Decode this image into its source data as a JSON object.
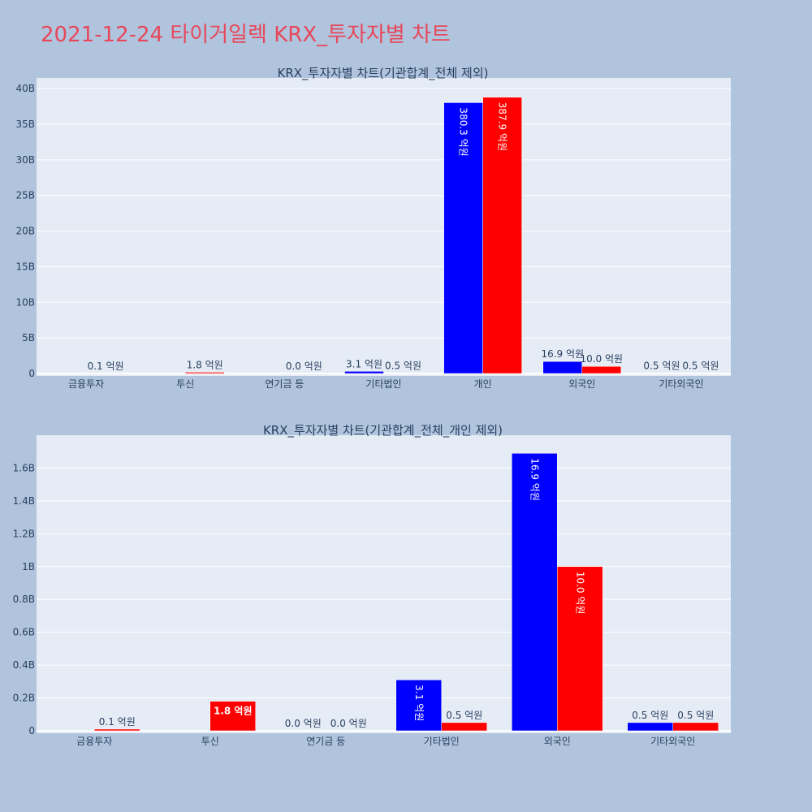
{
  "page_title": "2021-12-24 타이거일렉 KRX_투자자별 차트",
  "colors": {
    "background": "#b0c4de",
    "plot_bg": "#e5ecf6",
    "title": "#e8475a",
    "series_a": "#0000ff",
    "series_b": "#ff0000"
  },
  "chart_data": [
    {
      "type": "bar",
      "title": "KRX_투자자별 차트(기관합계_전체 제외)",
      "categories": [
        "금융투자",
        "투신",
        "연기금 등",
        "기타법인",
        "개인",
        "외국인",
        "기타외국인"
      ],
      "ylim": [
        0,
        41500000000
      ],
      "yticks": [
        0,
        5000000000,
        10000000000,
        15000000000,
        20000000000,
        25000000000,
        30000000000,
        35000000000,
        40000000000
      ],
      "ytick_labels": [
        "0",
        "5B",
        "10B",
        "15B",
        "20B",
        "25B",
        "30B",
        "35B",
        "40B"
      ],
      "grid": true,
      "series": [
        {
          "color": "#0000ff",
          "values": [
            0,
            0,
            0,
            310000000,
            38030000000,
            1690000000,
            50000000
          ],
          "labels": [
            "",
            "",
            "",
            "3.1 억원",
            "380.3 억원",
            "16.9 억원",
            "0.5 억원"
          ]
        },
        {
          "color": "#ff0000",
          "values": [
            10000000,
            180000000,
            0,
            50000000,
            38790000000,
            1000000000,
            50000000
          ],
          "labels": [
            "0.1 억원",
            "1.8 억원",
            "0.0 억원",
            "0.5 억원",
            "387.9 억원",
            "10.0 억원",
            "0.5 억원"
          ]
        }
      ]
    },
    {
      "type": "bar",
      "title": "KRX_투자자별 차트(기관합계_전체_개인 제외)",
      "categories": [
        "금융투자",
        "투신",
        "연기금 등",
        "기타법인",
        "외국인",
        "기타외국인"
      ],
      "ylim": [
        0,
        1800000000
      ],
      "yticks": [
        0,
        200000000,
        400000000,
        600000000,
        800000000,
        1000000000,
        1200000000,
        1400000000,
        1600000000
      ],
      "ytick_labels": [
        "0",
        "0.2B",
        "0.4B",
        "0.6B",
        "0.8B",
        "1B",
        "1.2B",
        "1.4B",
        "1.6B"
      ],
      "grid": true,
      "series": [
        {
          "color": "#0000ff",
          "values": [
            0,
            0,
            0,
            310000000,
            1690000000,
            50000000
          ],
          "labels": [
            "",
            "",
            "0.0 억원",
            "3.1 억원",
            "16.9 억원",
            "0.5 억원"
          ]
        },
        {
          "color": "#ff0000",
          "values": [
            10000000,
            180000000,
            0,
            50000000,
            1000000000,
            50000000
          ],
          "labels": [
            "0.1 억원",
            "1.8 억원",
            "0.0 억원",
            "0.5 억원",
            "10.0 억원",
            "0.5 억원"
          ]
        }
      ]
    }
  ]
}
